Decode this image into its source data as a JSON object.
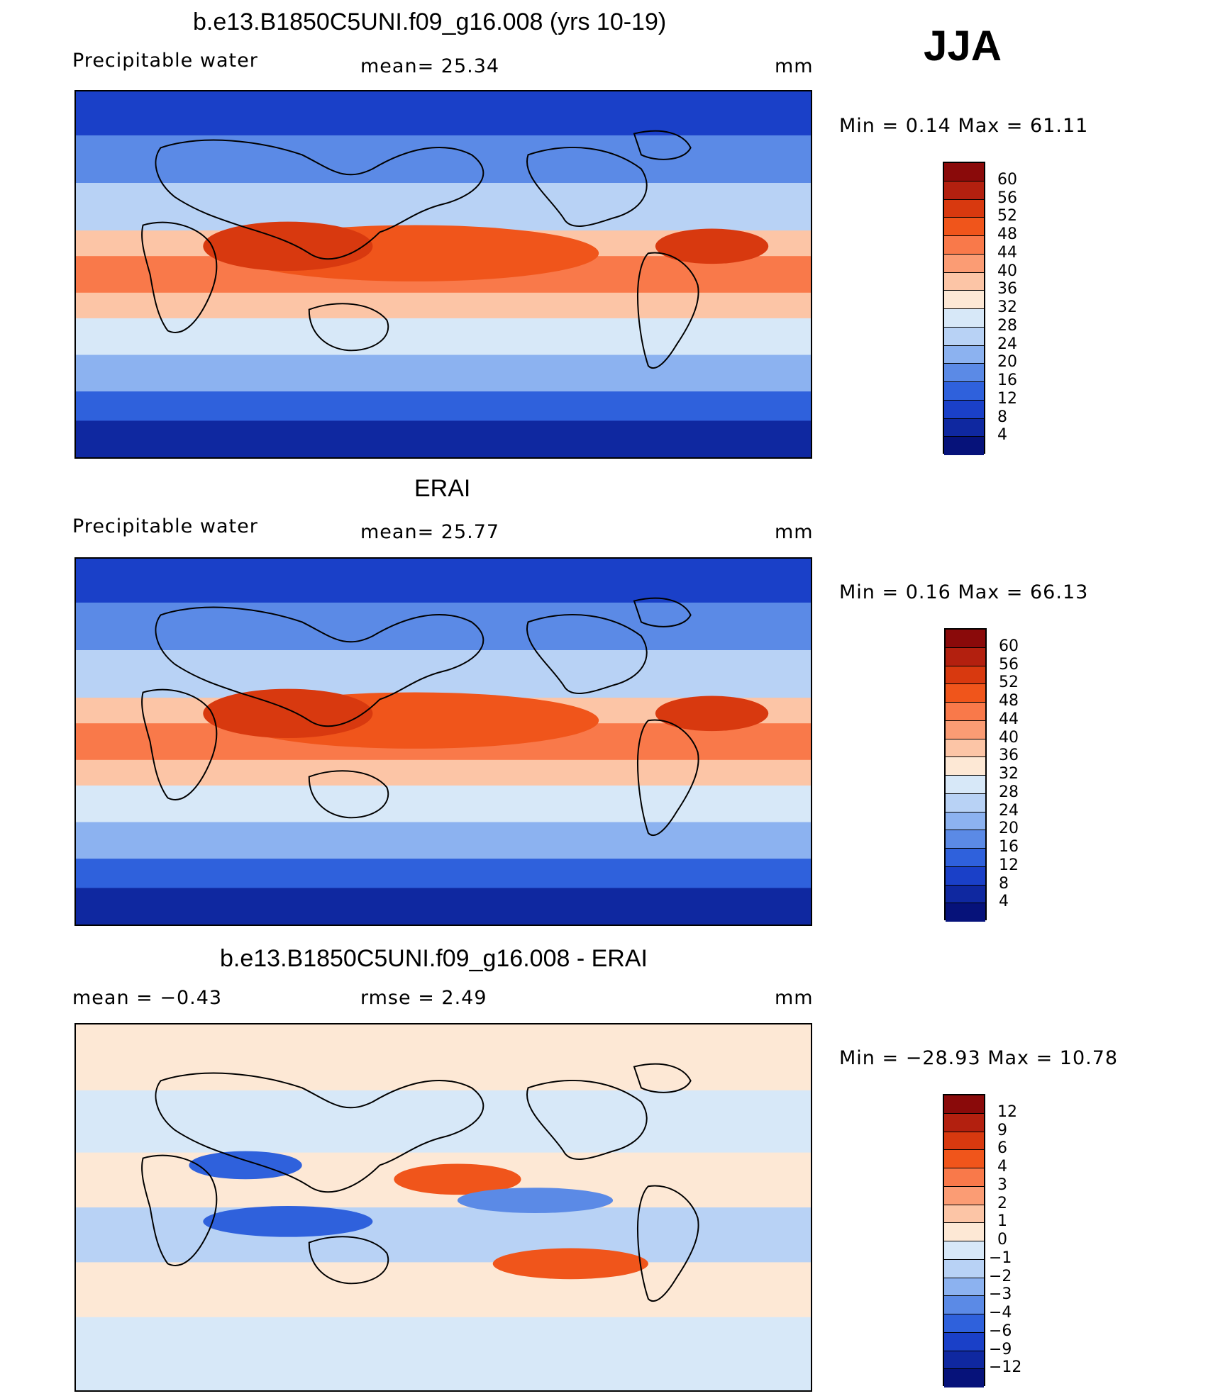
{
  "season": "JJA",
  "panels": [
    {
      "id": "model",
      "title": "b.e13.B1850C5UNI.f09_g16.008 (yrs 10-19)",
      "left_label": "Precipitable  water",
      "center_label": "mean=   25.34",
      "units": "mm",
      "minmax": "Min  =     0.14  Max  =    61.11",
      "colorbar_labels": [
        "60",
        "56",
        "52",
        "48",
        "44",
        "40",
        "36",
        "32",
        "28",
        "24",
        "20",
        "16",
        "12",
        "8",
        "4"
      ],
      "colors": [
        "#8a0a0a",
        "#b3200f",
        "#d8390f",
        "#f0551b",
        "#f9794a",
        "#fb9c74",
        "#fcc5a6",
        "#fde8d5",
        "#d7e8f8",
        "#b8d2f5",
        "#8cb2f0",
        "#5b8ae6",
        "#2f61dc",
        "#1a40c8",
        "#0f28a0",
        "#06127a"
      ]
    },
    {
      "id": "obs",
      "title": "ERAI",
      "left_label": "Precipitable  water",
      "center_label": "mean=   25.77",
      "units": "mm",
      "minmax": "Min  =     0.16  Max  =    66.13",
      "colorbar_labels": [
        "60",
        "56",
        "52",
        "48",
        "44",
        "40",
        "36",
        "32",
        "28",
        "24",
        "20",
        "16",
        "12",
        "8",
        "4"
      ],
      "colors": [
        "#8a0a0a",
        "#b3200f",
        "#d8390f",
        "#f0551b",
        "#f9794a",
        "#fb9c74",
        "#fcc5a6",
        "#fde8d5",
        "#d7e8f8",
        "#b8d2f5",
        "#8cb2f0",
        "#5b8ae6",
        "#2f61dc",
        "#1a40c8",
        "#0f28a0",
        "#06127a"
      ]
    },
    {
      "id": "diff",
      "title": "b.e13.B1850C5UNI.f09_g16.008 - ERAI",
      "left_label": "mean  =    −0.43",
      "center_label": "rmse  =     2.49",
      "units": "mm",
      "minmax": "Min  = −28.93  Max  =    10.78",
      "colorbar_labels": [
        "12",
        "9",
        "6",
        "4",
        "3",
        "2",
        "1",
        "0",
        "−1",
        "−2",
        "−3",
        "−4",
        "−6",
        "−9",
        "−12"
      ],
      "colors": [
        "#8a0a0a",
        "#b3200f",
        "#d8390f",
        "#f0551b",
        "#f9794a",
        "#fb9c74",
        "#fcc5a6",
        "#fde8d5",
        "#d7e8f8",
        "#b8d2f5",
        "#8cb2f0",
        "#5b8ae6",
        "#2f61dc",
        "#1a40c8",
        "#0f28a0",
        "#06127a"
      ]
    }
  ]
}
